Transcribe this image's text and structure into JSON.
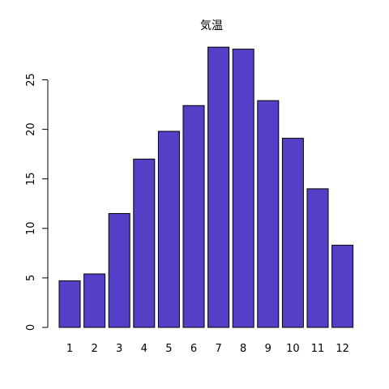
{
  "chart_data": {
    "type": "bar",
    "title": "気温",
    "categories": [
      "1",
      "2",
      "3",
      "4",
      "5",
      "6",
      "7",
      "8",
      "9",
      "10",
      "11",
      "12"
    ],
    "values": [
      4.7,
      5.4,
      11.5,
      17.0,
      19.8,
      22.4,
      28.3,
      28.1,
      22.9,
      19.1,
      14.0,
      8.3
    ],
    "ylim": [
      0,
      29
    ],
    "yticks": [
      0,
      5,
      10,
      15,
      20,
      25
    ],
    "bar_color": "#5440C6",
    "xlabel": "",
    "ylabel": "",
    "grid": false,
    "legend": "none"
  }
}
